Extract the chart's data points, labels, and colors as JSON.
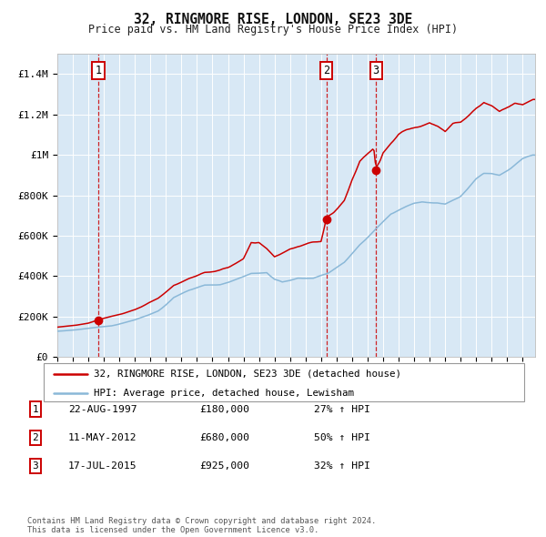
{
  "title": "32, RINGMORE RISE, LONDON, SE23 3DE",
  "subtitle": "Price paid vs. HM Land Registry's House Price Index (HPI)",
  "ylim": [
    0,
    1500000
  ],
  "xlim_start": 1995.0,
  "xlim_end": 2025.8,
  "plot_bg_color": "#d8e8f5",
  "grid_color": "#ffffff",
  "hpi_color": "#8ab8d8",
  "price_color": "#cc0000",
  "sale_marker_color": "#cc0000",
  "dashed_line_color": "#cc0000",
  "yticks": [
    0,
    200000,
    400000,
    600000,
    800000,
    1000000,
    1200000,
    1400000
  ],
  "ytick_labels": [
    "£0",
    "£200K",
    "£400K",
    "£600K",
    "£800K",
    "£1M",
    "£1.2M",
    "£1.4M"
  ],
  "xticks": [
    1995,
    1996,
    1997,
    1998,
    1999,
    2000,
    2001,
    2002,
    2003,
    2004,
    2005,
    2006,
    2007,
    2008,
    2009,
    2010,
    2011,
    2012,
    2013,
    2014,
    2015,
    2016,
    2017,
    2018,
    2019,
    2020,
    2021,
    2022,
    2023,
    2024,
    2025
  ],
  "legend_line1": "32, RINGMORE RISE, LONDON, SE23 3DE (detached house)",
  "legend_line2": "HPI: Average price, detached house, Lewisham",
  "sale1_date": 1997.64,
  "sale1_price": 180000,
  "sale1_label": "1",
  "sale1_date_str": "22-AUG-1997",
  "sale1_price_str": "£180,000",
  "sale1_hpi_str": "27% ↑ HPI",
  "sale2_date": 2012.36,
  "sale2_price": 680000,
  "sale2_label": "2",
  "sale2_date_str": "11-MAY-2012",
  "sale2_price_str": "£680,000",
  "sale2_hpi_str": "50% ↑ HPI",
  "sale3_date": 2015.54,
  "sale3_price": 925000,
  "sale3_label": "3",
  "sale3_date_str": "17-JUL-2015",
  "sale3_price_str": "£925,000",
  "sale3_hpi_str": "32% ↑ HPI",
  "footer": "Contains HM Land Registry data © Crown copyright and database right 2024.\nThis data is licensed under the Open Government Licence v3.0."
}
